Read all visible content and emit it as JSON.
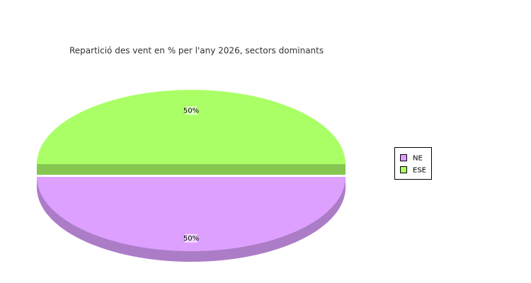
{
  "chart_data": {
    "type": "pie",
    "title": "Repartició des vent en % per l'any 2026, sectors dominants",
    "categories": [
      "NE",
      "ESE"
    ],
    "values": [
      50,
      50
    ],
    "value_labels": [
      "50%",
      "50%"
    ],
    "colors": [
      "#dda0ff",
      "#aaff66"
    ]
  }
}
